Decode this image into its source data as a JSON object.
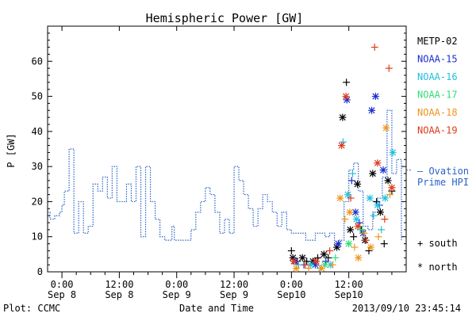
{
  "chart_data": {
    "type": "scatter",
    "title": "Hemispheric Power [GW]",
    "ylabel": "P [GW]",
    "xlabel": "Date and Time",
    "ylim": [
      0,
      70
    ],
    "y_ticks": [
      0,
      10,
      20,
      30,
      40,
      50,
      60
    ],
    "x_range_hours": [
      -3,
      72
    ],
    "x_ticks": [
      {
        "hour": 0,
        "time": "0:00",
        "date": "Sep 8"
      },
      {
        "hour": 12,
        "time": "12:00",
        "date": "Sep 8"
      },
      {
        "hour": 24,
        "time": "0:00",
        "date": "Sep 9"
      },
      {
        "hour": 36,
        "time": "12:00",
        "date": "Sep 9"
      },
      {
        "hour": 48,
        "time": "0:00",
        "date": "Sep10"
      },
      {
        "hour": 60,
        "time": "12:00",
        "date": "Sep10"
      }
    ],
    "legend": [
      {
        "name": "METP-02",
        "color": "#000000"
      },
      {
        "name": "NOAA-15",
        "color": "#1a2fd0"
      },
      {
        "name": "NOAA-16",
        "color": "#22c0dd"
      },
      {
        "name": "NOAA-17",
        "color": "#33dd77"
      },
      {
        "name": "NOAA-18",
        "color": "#f0951e"
      },
      {
        "name": "NOAA-19",
        "color": "#e03a1c"
      }
    ],
    "ovation_label": [
      "– Ovation",
      "Prime HPI"
    ],
    "ovation_color": "#2a62c8",
    "marker_legend": [
      {
        "symbol": "+",
        "label": "south"
      },
      {
        "symbol": "*",
        "label": "north"
      }
    ],
    "ovation_series": [
      [
        -3,
        17
      ],
      [
        -2.5,
        15
      ],
      [
        -1.5,
        16
      ],
      [
        -0.5,
        17
      ],
      [
        0,
        19
      ],
      [
        0.5,
        23
      ],
      [
        1.5,
        35
      ],
      [
        2.5,
        11
      ],
      [
        3.5,
        20
      ],
      [
        4.5,
        11
      ],
      [
        5.5,
        13
      ],
      [
        6.5,
        25
      ],
      [
        7.5,
        23
      ],
      [
        8.5,
        27
      ],
      [
        9.5,
        21
      ],
      [
        10.5,
        30
      ],
      [
        11.5,
        20
      ],
      [
        12.5,
        20
      ],
      [
        13.5,
        25
      ],
      [
        14.5,
        20
      ],
      [
        15.5,
        30
      ],
      [
        16.5,
        10
      ],
      [
        17.5,
        30
      ],
      [
        18.5,
        20
      ],
      [
        19.5,
        15
      ],
      [
        20.5,
        10
      ],
      [
        21.5,
        9
      ],
      [
        22.5,
        9
      ],
      [
        23,
        13
      ],
      [
        23.5,
        9
      ],
      [
        24,
        9
      ],
      [
        25,
        9
      ],
      [
        26,
        9
      ],
      [
        27,
        12
      ],
      [
        28,
        17
      ],
      [
        29,
        20
      ],
      [
        30,
        24
      ],
      [
        31,
        22
      ],
      [
        32,
        17
      ],
      [
        33,
        11
      ],
      [
        34,
        15
      ],
      [
        35,
        11
      ],
      [
        36,
        30
      ],
      [
        37,
        26
      ],
      [
        38,
        22
      ],
      [
        39,
        18
      ],
      [
        40,
        13
      ],
      [
        41,
        18
      ],
      [
        42,
        22
      ],
      [
        43,
        20
      ],
      [
        44,
        17
      ],
      [
        45,
        13
      ],
      [
        46,
        17
      ],
      [
        47,
        12
      ],
      [
        48,
        11
      ],
      [
        49,
        11
      ],
      [
        50,
        11
      ],
      [
        51,
        9
      ],
      [
        52,
        9
      ],
      [
        53,
        11
      ],
      [
        54,
        11
      ],
      [
        55,
        10
      ],
      [
        56,
        11
      ],
      [
        57,
        8
      ],
      [
        58,
        9
      ],
      [
        59,
        20
      ],
      [
        60,
        29
      ],
      [
        61,
        31
      ],
      [
        62,
        23
      ],
      [
        63,
        13
      ],
      [
        64,
        12
      ],
      [
        65,
        17
      ],
      [
        66,
        21
      ],
      [
        67,
        27
      ],
      [
        68,
        46
      ],
      [
        69,
        28
      ],
      [
        70,
        32
      ],
      [
        71,
        9
      ]
    ],
    "points": [
      {
        "sat": "METP-02",
        "m": "+",
        "x": 48.0,
        "y": 6
      },
      {
        "sat": "METP-02",
        "m": "*",
        "x": 48.3,
        "y": 4
      },
      {
        "sat": "METP-02",
        "m": "+",
        "x": 49.2,
        "y": 3
      },
      {
        "sat": "METP-02",
        "m": "*",
        "x": 50.3,
        "y": 4
      },
      {
        "sat": "METP-02",
        "m": "+",
        "x": 51.2,
        "y": 3
      },
      {
        "sat": "METP-02",
        "m": "*",
        "x": 52.5,
        "y": 3
      },
      {
        "sat": "METP-02",
        "m": "+",
        "x": 53.5,
        "y": 4
      },
      {
        "sat": "METP-02",
        "m": "*",
        "x": 54.8,
        "y": 5
      },
      {
        "sat": "METP-02",
        "m": "+",
        "x": 55.7,
        "y": 4
      },
      {
        "sat": "METP-02",
        "m": "*",
        "x": 57.5,
        "y": 7
      },
      {
        "sat": "METP-02",
        "m": "*",
        "x": 58.7,
        "y": 44
      },
      {
        "sat": "METP-02",
        "m": "+",
        "x": 59.5,
        "y": 54
      },
      {
        "sat": "METP-02",
        "m": "*",
        "x": 60.3,
        "y": 12
      },
      {
        "sat": "METP-02",
        "m": "+",
        "x": 61.0,
        "y": 10
      },
      {
        "sat": "METP-02",
        "m": "*",
        "x": 61.8,
        "y": 25
      },
      {
        "sat": "METP-02",
        "m": "+",
        "x": 62.6,
        "y": 12
      },
      {
        "sat": "METP-02",
        "m": "*",
        "x": 63.4,
        "y": 9
      },
      {
        "sat": "METP-02",
        "m": "+",
        "x": 64.2,
        "y": 6
      },
      {
        "sat": "METP-02",
        "m": "*",
        "x": 65.0,
        "y": 28
      },
      {
        "sat": "METP-02",
        "m": "+",
        "x": 65.8,
        "y": 20
      },
      {
        "sat": "METP-02",
        "m": "*",
        "x": 66.6,
        "y": 17
      },
      {
        "sat": "METP-02",
        "m": "+",
        "x": 67.4,
        "y": 8
      },
      {
        "sat": "METP-02",
        "m": "*",
        "x": 68.2,
        "y": 26
      },
      {
        "sat": "METP-02",
        "m": "+",
        "x": 69.0,
        "y": 23
      },
      {
        "sat": "NOAA-15",
        "m": "*",
        "x": 48.8,
        "y": 3
      },
      {
        "sat": "NOAA-15",
        "m": "+",
        "x": 50.6,
        "y": 2
      },
      {
        "sat": "NOAA-15",
        "m": "*",
        "x": 53.0,
        "y": 2
      },
      {
        "sat": "NOAA-15",
        "m": "+",
        "x": 55.2,
        "y": 3
      },
      {
        "sat": "NOAA-15",
        "m": "*",
        "x": 57.8,
        "y": 8
      },
      {
        "sat": "NOAA-15",
        "m": "*",
        "x": 59.6,
        "y": 49
      },
      {
        "sat": "NOAA-15",
        "m": "+",
        "x": 60.6,
        "y": 26
      },
      {
        "sat": "NOAA-15",
        "m": "*",
        "x": 61.4,
        "y": 17
      },
      {
        "sat": "NOAA-15",
        "m": "+",
        "x": 62.2,
        "y": 14
      },
      {
        "sat": "NOAA-15",
        "m": "*",
        "x": 63.0,
        "y": 11
      },
      {
        "sat": "NOAA-15",
        "m": "*",
        "x": 64.8,
        "y": 46
      },
      {
        "sat": "NOAA-15",
        "m": "*",
        "x": 65.6,
        "y": 50
      },
      {
        "sat": "NOAA-15",
        "m": "+",
        "x": 66.4,
        "y": 19
      },
      {
        "sat": "NOAA-15",
        "m": "*",
        "x": 67.2,
        "y": 29
      },
      {
        "sat": "NOAA-16",
        "m": "+",
        "x": 49.5,
        "y": 2
      },
      {
        "sat": "NOAA-16",
        "m": "*",
        "x": 52.0,
        "y": 2
      },
      {
        "sat": "NOAA-16",
        "m": "+",
        "x": 54.0,
        "y": 1
      },
      {
        "sat": "NOAA-16",
        "m": "*",
        "x": 56.2,
        "y": 2
      },
      {
        "sat": "NOAA-16",
        "m": "+",
        "x": 58.8,
        "y": 37
      },
      {
        "sat": "NOAA-16",
        "m": "*",
        "x": 59.8,
        "y": 22
      },
      {
        "sat": "NOAA-16",
        "m": "+",
        "x": 60.8,
        "y": 28
      },
      {
        "sat": "NOAA-16",
        "m": "*",
        "x": 61.6,
        "y": 15
      },
      {
        "sat": "NOAA-16",
        "m": "+",
        "x": 62.4,
        "y": 12
      },
      {
        "sat": "NOAA-16",
        "m": "*",
        "x": 64.4,
        "y": 21
      },
      {
        "sat": "NOAA-16",
        "m": "+",
        "x": 65.2,
        "y": 16
      },
      {
        "sat": "NOAA-16",
        "m": "*",
        "x": 66.0,
        "y": 19
      },
      {
        "sat": "NOAA-16",
        "m": "+",
        "x": 66.8,
        "y": 12
      },
      {
        "sat": "NOAA-16",
        "m": "*",
        "x": 67.6,
        "y": 21
      },
      {
        "sat": "NOAA-16",
        "m": "*",
        "x": 69.2,
        "y": 34
      },
      {
        "sat": "NOAA-17",
        "m": "*",
        "x": 55.0,
        "y": 2
      },
      {
        "sat": "NOAA-17",
        "m": "+",
        "x": 57.2,
        "y": 4
      },
      {
        "sat": "NOAA-17",
        "m": "*",
        "x": 60.0,
        "y": 8
      },
      {
        "sat": "NOAA-17",
        "m": "+",
        "x": 62.8,
        "y": 12
      },
      {
        "sat": "NOAA-18",
        "m": "*",
        "x": 49.0,
        "y": 1
      },
      {
        "sat": "NOAA-18",
        "m": "+",
        "x": 51.6,
        "y": 1
      },
      {
        "sat": "NOAA-18",
        "m": "*",
        "x": 54.3,
        "y": 1
      },
      {
        "sat": "NOAA-18",
        "m": "+",
        "x": 56.6,
        "y": 2
      },
      {
        "sat": "NOAA-18",
        "m": "*",
        "x": 58.2,
        "y": 21
      },
      {
        "sat": "NOAA-18",
        "m": "+",
        "x": 59.2,
        "y": 15
      },
      {
        "sat": "NOAA-18",
        "m": "*",
        "x": 60.2,
        "y": 17
      },
      {
        "sat": "NOAA-18",
        "m": "+",
        "x": 61.2,
        "y": 7
      },
      {
        "sat": "NOAA-18",
        "m": "*",
        "x": 62.0,
        "y": 4
      },
      {
        "sat": "NOAA-18",
        "m": "+",
        "x": 63.2,
        "y": 11
      },
      {
        "sat": "NOAA-18",
        "m": "*",
        "x": 64.6,
        "y": 7
      },
      {
        "sat": "NOAA-18",
        "m": "+",
        "x": 66.2,
        "y": 10
      },
      {
        "sat": "NOAA-18",
        "m": "*",
        "x": 67.8,
        "y": 41
      },
      {
        "sat": "NOAA-18",
        "m": "+",
        "x": 68.6,
        "y": 22
      },
      {
        "sat": "NOAA-19",
        "m": "*",
        "x": 48.5,
        "y": 3
      },
      {
        "sat": "NOAA-19",
        "m": "+",
        "x": 50.9,
        "y": 2
      },
      {
        "sat": "NOAA-19",
        "m": "*",
        "x": 53.2,
        "y": 3
      },
      {
        "sat": "NOAA-19",
        "m": "+",
        "x": 56.0,
        "y": 6
      },
      {
        "sat": "NOAA-19",
        "m": "*",
        "x": 58.5,
        "y": 36
      },
      {
        "sat": "NOAA-19",
        "m": "*",
        "x": 59.4,
        "y": 50
      },
      {
        "sat": "NOAA-19",
        "m": "+",
        "x": 60.4,
        "y": 21
      },
      {
        "sat": "NOAA-19",
        "m": "*",
        "x": 61.9,
        "y": 13
      },
      {
        "sat": "NOAA-19",
        "m": "+",
        "x": 63.6,
        "y": 9
      },
      {
        "sat": "NOAA-19",
        "m": "+",
        "x": 65.4,
        "y": 64
      },
      {
        "sat": "NOAA-19",
        "m": "*",
        "x": 66.0,
        "y": 31
      },
      {
        "sat": "NOAA-19",
        "m": "+",
        "x": 67.5,
        "y": 15
      },
      {
        "sat": "NOAA-19",
        "m": "+",
        "x": 68.4,
        "y": 58
      },
      {
        "sat": "NOAA-19",
        "m": "*",
        "x": 69.0,
        "y": 24
      }
    ]
  },
  "footer": {
    "plot_credit": "Plot: CCMC",
    "timestamp": "2013/09/10 23:45:14"
  }
}
